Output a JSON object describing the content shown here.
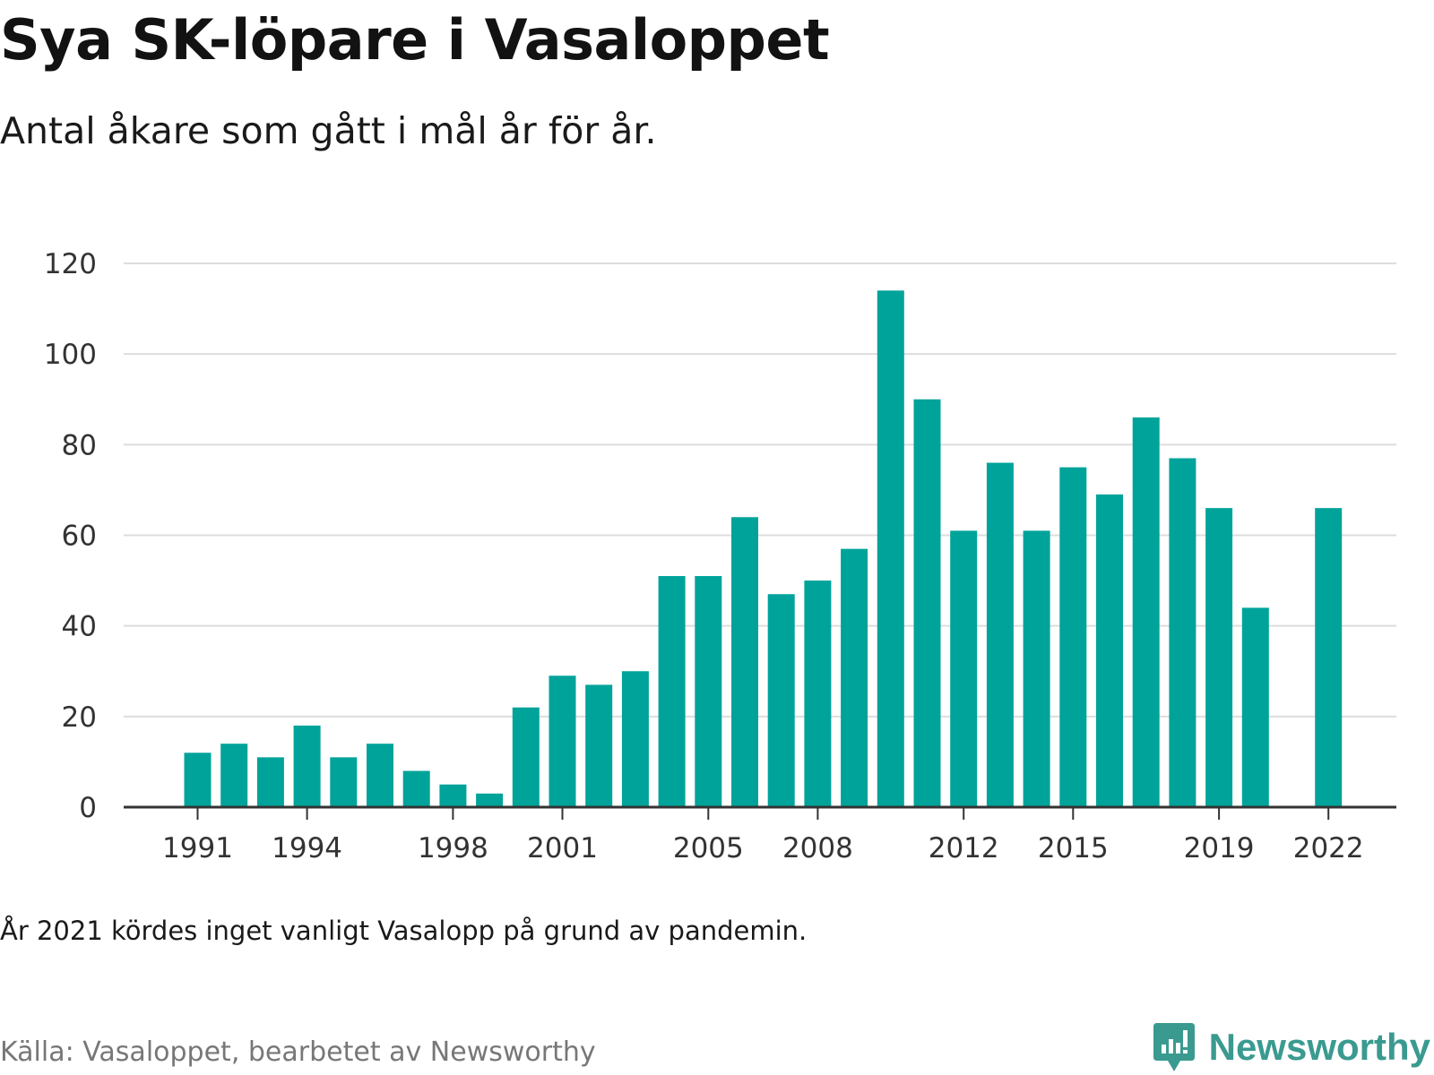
{
  "header": {
    "title": "Sya SK-löpare i Vasaloppet",
    "subtitle": "Antal åkare som gått i mål år för år."
  },
  "footer": {
    "note": "År 2021 kördes inget vanligt Vasalopp på grund av pandemin.",
    "source": "Källa: Vasaloppet, bearbetet av Newsworthy",
    "brand": "Newsworthy"
  },
  "colors": {
    "bar": "#00a39a",
    "grid": "#dddddd",
    "axis": "#333333",
    "brand": "#3a9a90"
  },
  "icons": {
    "brand_logo": "newsworthy-bar-chart-icon"
  },
  "chart_data": {
    "type": "bar",
    "title": "Sya SK-löpare i Vasaloppet",
    "subtitle": "Antal åkare som gått i mål år för år.",
    "xlabel": "",
    "ylabel": "",
    "ylim": [
      0,
      120
    ],
    "yticks": [
      0,
      20,
      40,
      60,
      80,
      100,
      120
    ],
    "xtick_labels": [
      "1991",
      "1994",
      "1998",
      "2001",
      "2005",
      "2008",
      "2012",
      "2015",
      "2019",
      "2022"
    ],
    "grid": true,
    "legend": "none",
    "categories": [
      1991,
      1992,
      1993,
      1994,
      1995,
      1996,
      1997,
      1998,
      1999,
      2000,
      2001,
      2002,
      2003,
      2004,
      2005,
      2006,
      2007,
      2008,
      2009,
      2010,
      2011,
      2012,
      2013,
      2014,
      2015,
      2016,
      2017,
      2018,
      2019,
      2020,
      2021,
      2022
    ],
    "values": [
      12,
      14,
      11,
      18,
      11,
      14,
      8,
      5,
      3,
      22,
      29,
      27,
      30,
      51,
      51,
      64,
      47,
      50,
      57,
      114,
      90,
      61,
      76,
      61,
      75,
      69,
      86,
      77,
      66,
      44,
      null,
      66
    ]
  }
}
